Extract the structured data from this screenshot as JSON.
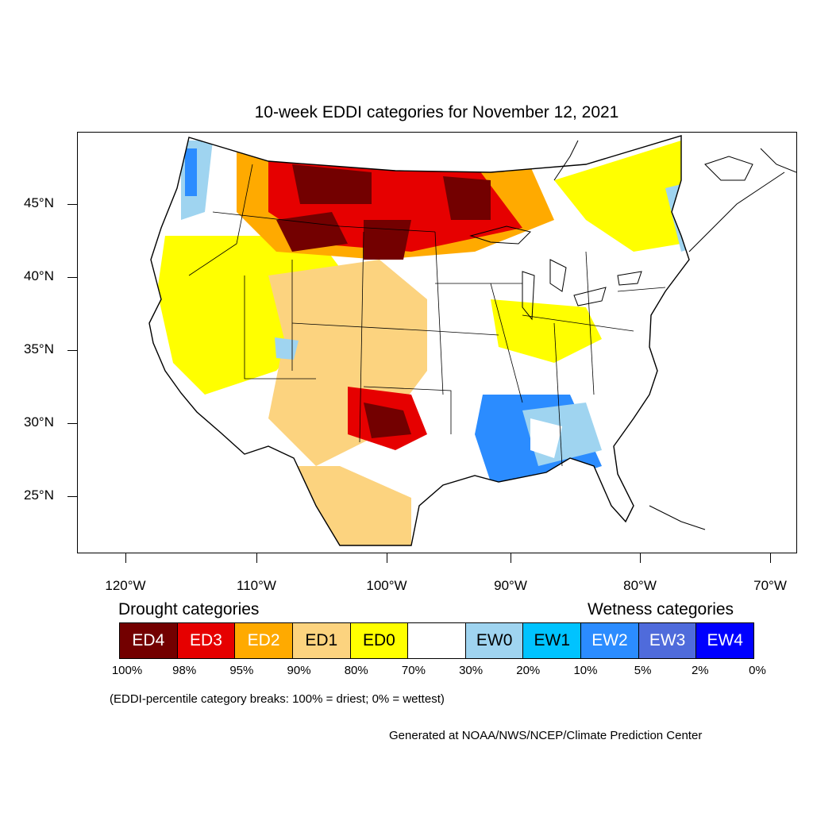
{
  "title": "10-week EDDI categories for November 12, 2021",
  "lat_labels": [
    "45°N",
    "40°N",
    "35°N",
    "30°N",
    "25°N"
  ],
  "lon_labels": [
    "120°W",
    "110°W",
    "100°W",
    "90°W",
    "80°W",
    "70°W"
  ],
  "drought_title": "Drought categories",
  "wetness_title": "Wetness categories",
  "categories": [
    {
      "label": "ED4",
      "color": "#730000"
    },
    {
      "label": "ED3",
      "color": "#e60000"
    },
    {
      "label": "ED2",
      "color": "#ffaa00"
    },
    {
      "label": "ED1",
      "color": "#fcd37f"
    },
    {
      "label": "ED0",
      "color": "#ffff00"
    },
    {
      "label": "",
      "color": "#ffffff"
    },
    {
      "label": "EW0",
      "color": "#9fd4f0"
    },
    {
      "label": "EW1",
      "color": "#00c3ff"
    },
    {
      "label": "EW2",
      "color": "#2b8cff"
    },
    {
      "label": "EW3",
      "color": "#4f6bdb"
    },
    {
      "label": "EW4",
      "color": "#0000ff"
    }
  ],
  "percent_breaks": [
    "100%",
    "98%",
    "95%",
    "90%",
    "80%",
    "70%",
    "30%",
    "20%",
    "10%",
    "5%",
    "2%",
    "0%"
  ],
  "note": "(EDDI-percentile category breaks: 100% = driest; 0% = wettest)",
  "credit": "Generated at NOAA/NWS/NCEP/Climate Prediction Center"
}
